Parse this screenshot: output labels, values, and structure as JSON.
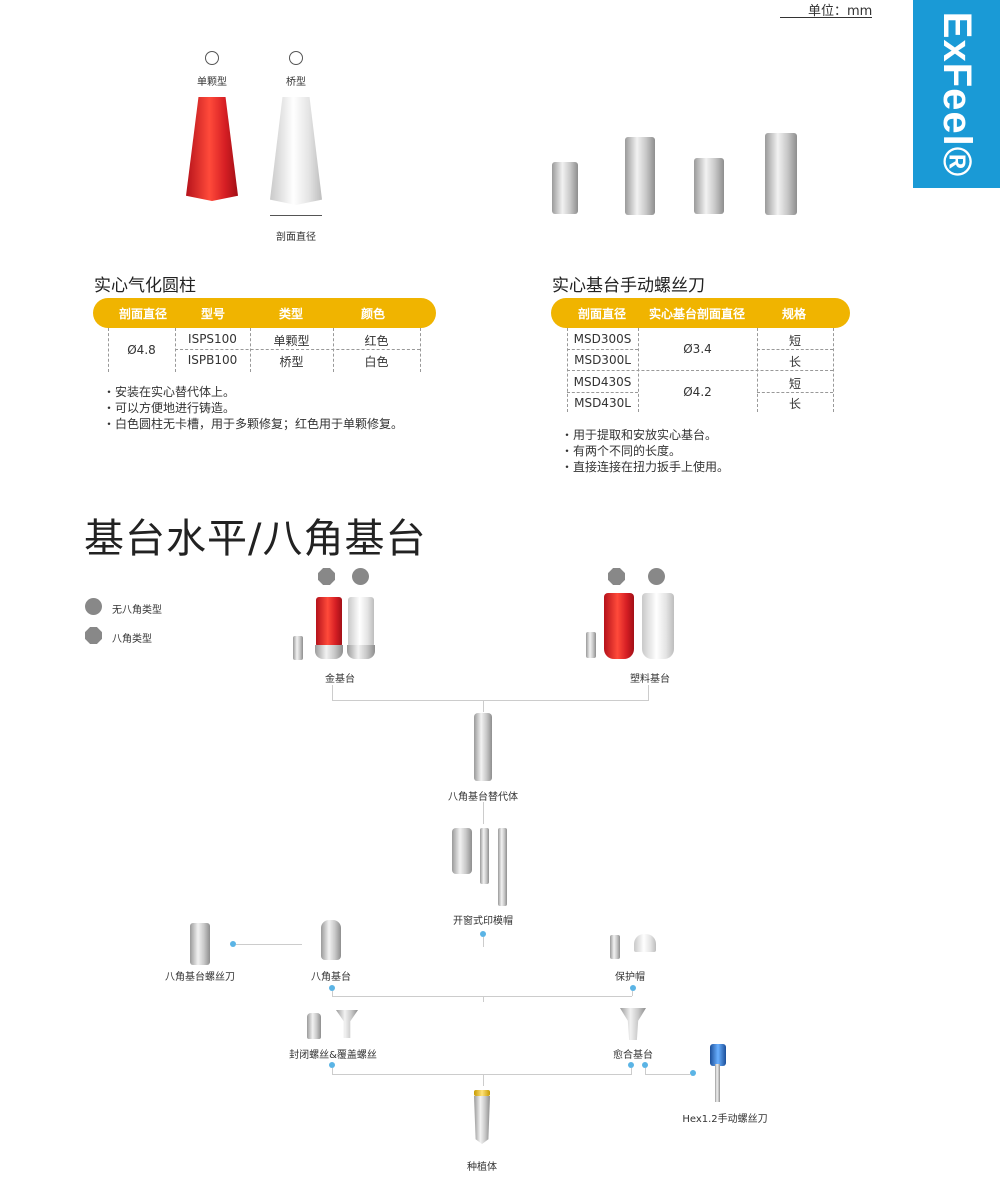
{
  "header": {
    "unit": "单位：mm",
    "brand": "ExFeel®"
  },
  "cylinder": {
    "circle_labels": [
      "单颗型",
      "桥型"
    ],
    "section_label": "剖面直径",
    "title": "实心气化圆柱",
    "headers": [
      "剖面直径",
      "型号",
      "类型",
      "颜色"
    ],
    "diameter": "Ø4.8",
    "rows": [
      {
        "model": "ISPS100",
        "type": "单颗型",
        "color": "红色"
      },
      {
        "model": "ISPB100",
        "type": "桥型",
        "color": "白色"
      }
    ],
    "notes": [
      "・安装在实心替代体上。",
      "・可以方便地进行铸造。",
      "・白色圆柱无卡槽，用于多颗修复；红色用于单颗修复。"
    ]
  },
  "driver": {
    "title": "实心基台手动螺丝刀",
    "headers": [
      "剖面直径",
      "实心基台剖面直径",
      "规格"
    ],
    "groups": [
      {
        "diameter": "Ø3.4",
        "rows": [
          {
            "model": "MSD300S",
            "spec": "短"
          },
          {
            "model": "MSD300L",
            "spec": "长"
          }
        ]
      },
      {
        "diameter": "Ø4.2",
        "rows": [
          {
            "model": "MSD430S",
            "spec": "短"
          },
          {
            "model": "MSD430L",
            "spec": "长"
          }
        ]
      }
    ],
    "notes": [
      "・用于提取和安放实心基台。",
      "・有两个不同的长度。",
      "・直接连接在扭力扳手上使用。"
    ]
  },
  "flow": {
    "title": "基台水平/八角基台",
    "legend": [
      "无八角类型",
      "八角类型"
    ],
    "labels": {
      "gold": "金基台",
      "plastic": "塑料基台",
      "analog": "八角基台替代体",
      "coping": "开窗式印模帽",
      "octa_driver": "八角基台螺丝刀",
      "octa_abutment": "八角基台",
      "cap": "保护帽",
      "screws": "封闭螺丝&覆盖螺丝",
      "healing": "愈合基台",
      "hex_driver": "Hex1.2手动螺丝刀",
      "implant": "种植体"
    }
  },
  "colors": {
    "accent": "#f0b400",
    "brand": "#1a9ad6",
    "node": "#5bb4e5",
    "red": "#d61f24"
  }
}
